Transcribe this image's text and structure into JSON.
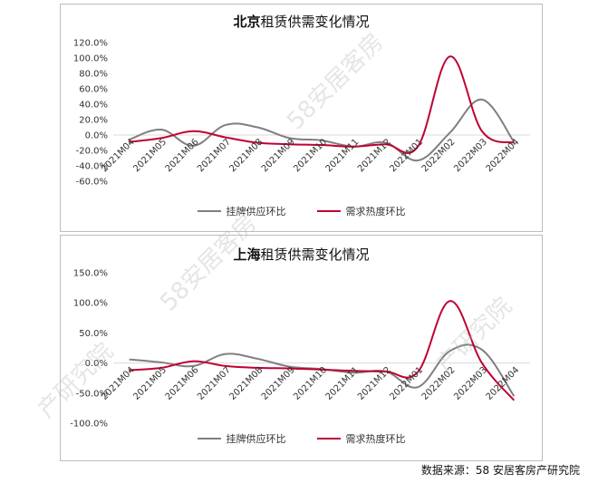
{
  "colors": {
    "supply": "#7f7f7f",
    "demand": "#c00032",
    "axis": "#d9d9d9"
  },
  "chart_data": [
    {
      "type": "line",
      "title_city": "北京",
      "title_rest": "租赁供需变化情况",
      "categories": [
        "2021M04",
        "2021M05",
        "2021M06",
        "2021M07",
        "2021M08",
        "2021M09",
        "2021M10",
        "2021M11",
        "2021M12",
        "2022M01",
        "2022M02",
        "2022M03",
        "2022M04"
      ],
      "y_ticks": [
        "120.0%",
        "100.0%",
        "80.0%",
        "60.0%",
        "40.0%",
        "20.0%",
        "0.0%",
        "-20.0%",
        "-40.0%",
        "-60.0%"
      ],
      "ylim": [
        -60,
        120
      ],
      "series": [
        {
          "name": "挂牌供应环比",
          "values": [
            -6,
            7,
            -14,
            13,
            10,
            -4,
            -7,
            -15,
            -10,
            -33,
            3,
            46,
            -9
          ]
        },
        {
          "name": "需求热度环比",
          "values": [
            -9,
            -4,
            5,
            -3,
            -10,
            -12,
            -13,
            -15,
            -12,
            -15,
            102,
            5,
            -10
          ]
        }
      ]
    },
    {
      "type": "line",
      "title_city": "上海",
      "title_rest": "租赁供需变化情况",
      "categories": [
        "2021M04",
        "2021M05",
        "2021M06",
        "2021M07",
        "2021M08",
        "2021M09",
        "2021M10",
        "2021M11",
        "2021M12",
        "2022M01",
        "2022M02",
        "2022M03",
        "2022M04"
      ],
      "y_ticks": [
        "150.0%",
        "100.0%",
        "50.0%",
        "0.0%",
        "-50.0%",
        "-100.0%"
      ],
      "ylim": [
        -100,
        150
      ],
      "series": [
        {
          "name": "挂牌供应环比",
          "values": [
            6,
            1,
            -5,
            15,
            7,
            -6,
            -10,
            -16,
            -14,
            -40,
            20,
            22,
            -55
          ]
        },
        {
          "name": "需求热度环比",
          "values": [
            -12,
            -8,
            3,
            -5,
            -8,
            -9,
            -11,
            -13,
            -14,
            -15,
            103,
            0,
            -62
          ]
        }
      ]
    }
  ],
  "legend": {
    "supply": "挂牌供应环比",
    "demand": "需求热度环比"
  },
  "watermark": {
    "line1": "58安居客房",
    "line2": "产研究院"
  },
  "source_text": "数据来源：58 安居客房产研究院"
}
